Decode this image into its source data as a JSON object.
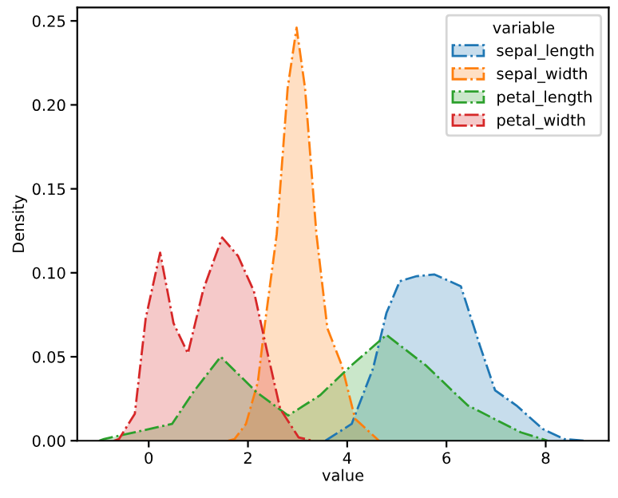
{
  "chart_data": {
    "type": "area",
    "xlabel": "value",
    "ylabel": "Density",
    "legend_title": "variable",
    "legend": "top right",
    "grid": false,
    "line_style": "dashdot",
    "xlim": [
      -1.44,
      9.27
    ],
    "ylim": [
      0,
      0.258
    ],
    "xticks": [
      0,
      2,
      4,
      6,
      8
    ],
    "yticks": [
      {
        "value": 0,
        "label": "0.00"
      },
      {
        "value": 0.05,
        "label": "0.05"
      },
      {
        "value": 0.1,
        "label": "0.10"
      },
      {
        "value": 0.15,
        "label": "0.15"
      },
      {
        "value": 0.2,
        "label": "0.20"
      },
      {
        "value": 0.25,
        "label": "0.25"
      }
    ],
    "series": [
      {
        "name": "sepal_length",
        "color": "#1f77b4",
        "x": [
          3.56,
          4.09,
          4.52,
          4.79,
          5.06,
          5.4,
          5.76,
          6.29,
          6.67,
          6.98,
          7.41,
          7.94,
          8.37,
          8.8
        ],
        "values": [
          0,
          0.01,
          0.043,
          0.076,
          0.095,
          0.098,
          0.099,
          0.092,
          0.057,
          0.03,
          0.021,
          0.007,
          0.001,
          0
        ]
      },
      {
        "name": "sepal_width",
        "color": "#ff7f0e",
        "x": [
          1.6,
          1.73,
          1.96,
          2.2,
          2.33,
          2.58,
          2.8,
          2.98,
          3.15,
          3.38,
          3.6,
          3.89,
          4.16,
          4.64
        ],
        "values": [
          0,
          0.001,
          0.01,
          0.035,
          0.067,
          0.123,
          0.21,
          0.246,
          0.21,
          0.123,
          0.067,
          0.045,
          0.013,
          0
        ]
      },
      {
        "name": "petal_length",
        "color": "#2ca02c",
        "x": [
          -1.0,
          -0.9,
          0.47,
          0.9,
          1.45,
          2.17,
          2.81,
          3.45,
          4.09,
          4.79,
          5.58,
          6.43,
          7.5,
          8.04
        ],
        "values": [
          0,
          0.001,
          0.01,
          0.029,
          0.05,
          0.029,
          0.015,
          0.027,
          0.045,
          0.063,
          0.045,
          0.021,
          0.005,
          0
        ]
      },
      {
        "name": "petal_width",
        "color": "#d62728",
        "x": [
          -0.7,
          -0.6,
          -0.28,
          -0.06,
          0.23,
          0.5,
          0.79,
          1.1,
          1.48,
          1.8,
          2.12,
          2.38,
          2.65,
          3.02,
          3.3
        ],
        "values": [
          0,
          0.001,
          0.016,
          0.073,
          0.112,
          0.07,
          0.052,
          0.09,
          0.121,
          0.11,
          0.089,
          0.054,
          0.019,
          0.002,
          0
        ]
      }
    ]
  }
}
